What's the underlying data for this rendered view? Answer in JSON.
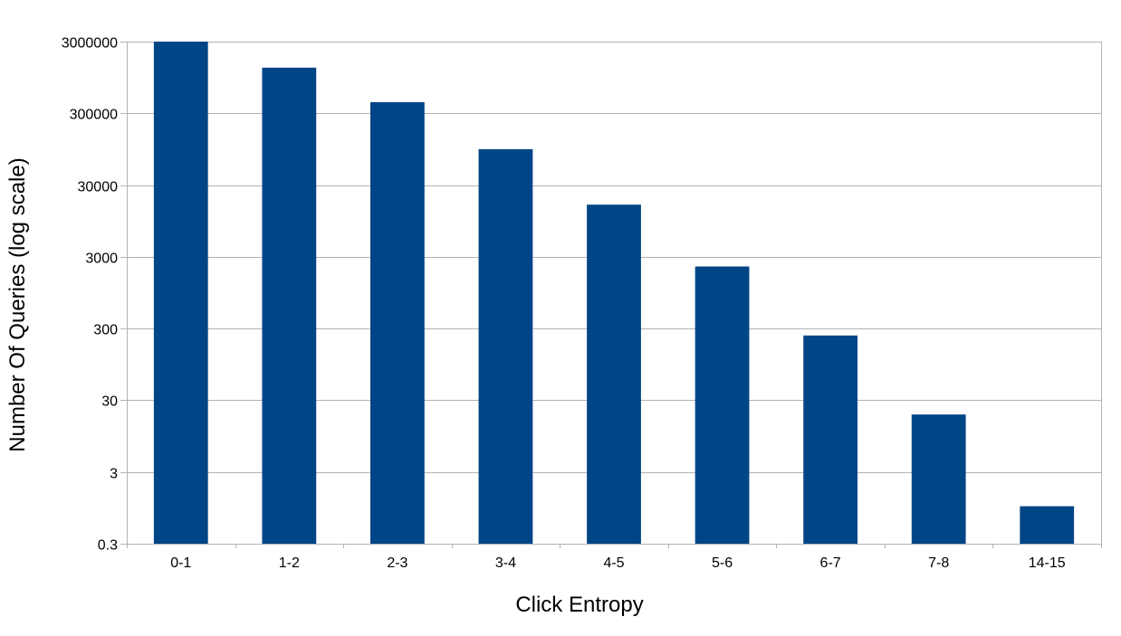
{
  "chart_data": {
    "type": "bar",
    "title": "",
    "xlabel": "Click Entropy",
    "ylabel": "Number Of Queries (log scale)",
    "y_scale": "log",
    "ylim": [
      0.3,
      3000000
    ],
    "y_ticks": [
      0.3,
      3,
      30,
      300,
      3000,
      30000,
      300000,
      3000000
    ],
    "y_tick_labels": [
      "0.3",
      "3",
      "30",
      "300",
      "3000",
      "30000",
      "300000",
      "3000000"
    ],
    "grid": true,
    "legend": "none",
    "bar_color": "#004586",
    "categories": [
      "0-1",
      "1-2",
      "2-3",
      "3-4",
      "4-5",
      "5-6",
      "6-7",
      "7-8",
      "14-15"
    ],
    "values": [
      3000000,
      1300000,
      430000,
      95000,
      16000,
      2200,
      240,
      19,
      1
    ]
  }
}
